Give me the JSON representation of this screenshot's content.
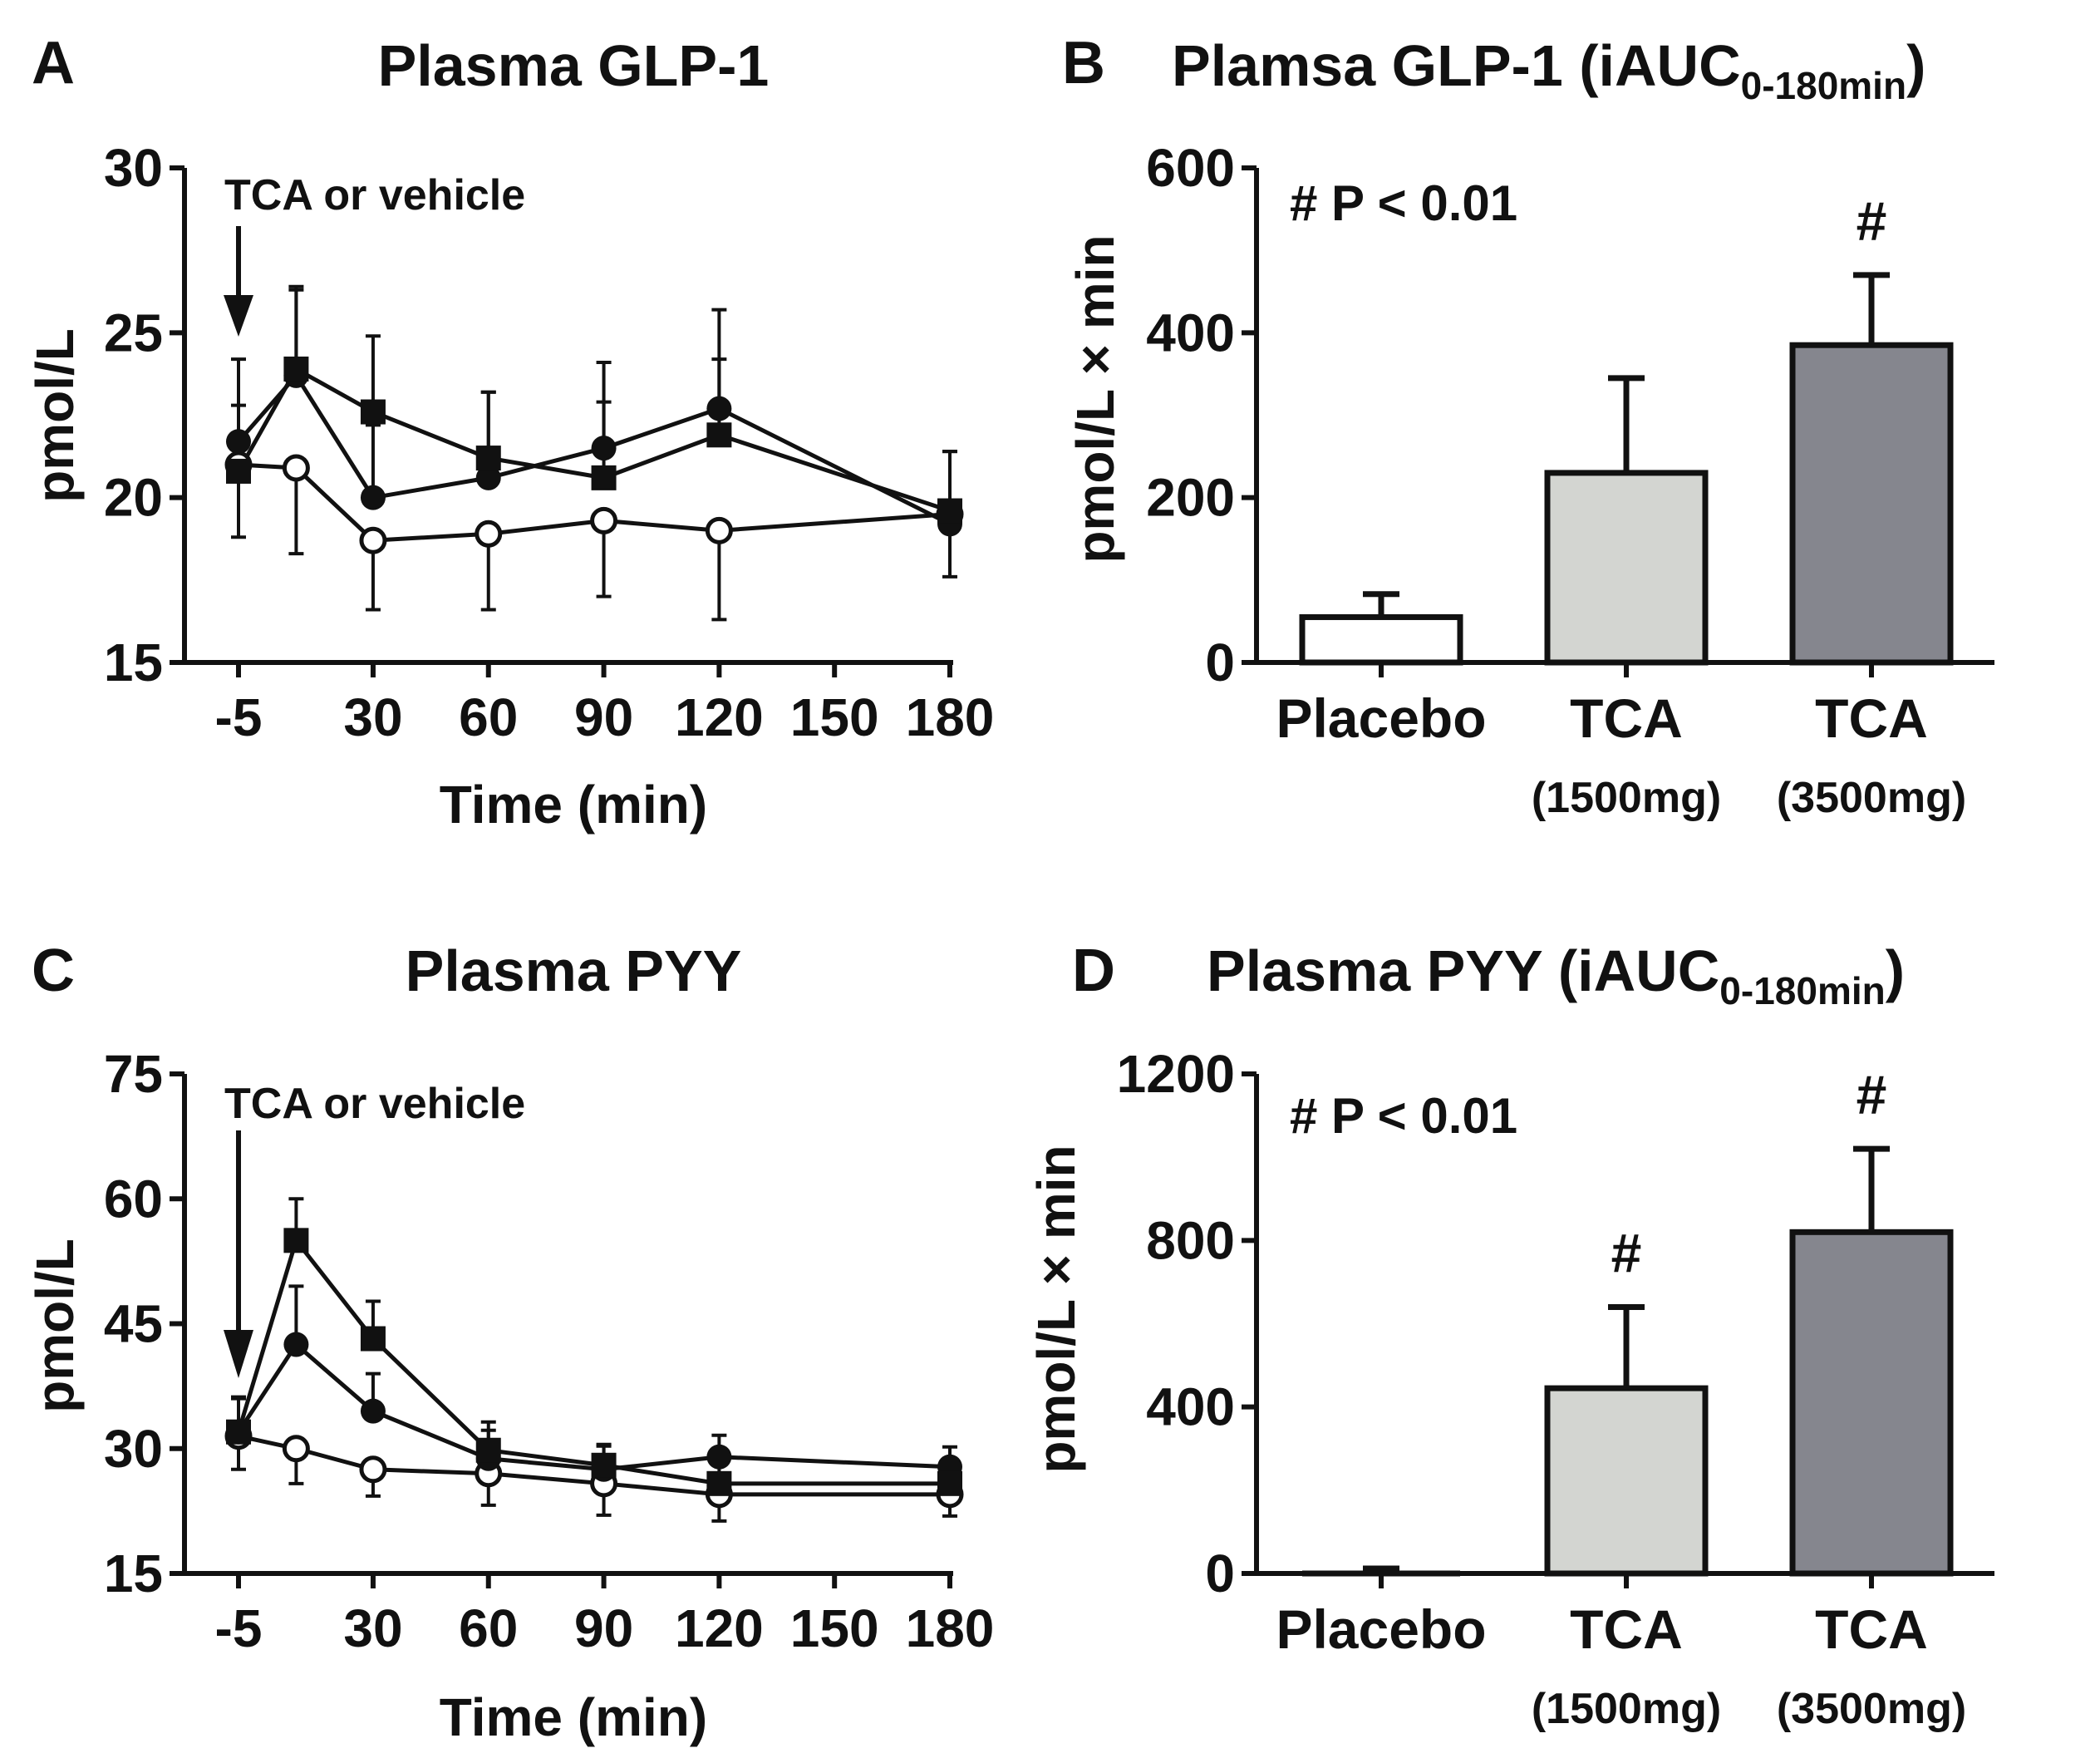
{
  "chart_data": [
    {
      "panel": "A",
      "type": "line",
      "title": "Plasma GLP-1",
      "xlabel": "Time (min)",
      "ylabel": "pmol/L",
      "ylim": [
        15,
        30
      ],
      "yticks": [
        "15",
        "20",
        "25",
        "30"
      ],
      "x_positions": [
        -5,
        10,
        30,
        60,
        90,
        120,
        180
      ],
      "xticks": [
        {
          "value": -5,
          "label": "-5"
        },
        {
          "value": 30,
          "label": "30"
        },
        {
          "value": 60,
          "label": "60"
        },
        {
          "value": 90,
          "label": "90"
        },
        {
          "value": 120,
          "label": "120"
        },
        {
          "value": 150,
          "label": "150"
        },
        {
          "value": 180,
          "label": "180"
        }
      ],
      "annotation": "TCA or vehicle",
      "series": [
        {
          "name": "Placebo",
          "marker": "open-circle",
          "x": [
            -5,
            10,
            30,
            60,
            90,
            120,
            180
          ],
          "values": [
            21.0,
            20.9,
            18.7,
            18.9,
            19.3,
            19.0,
            19.5
          ],
          "errors": [
            2.2,
            2.6,
            2.1,
            2.3,
            2.3,
            2.7,
            1.9
          ]
        },
        {
          "name": "TCA (1500mg)",
          "marker": "filled-circle",
          "x": [
            -5,
            10,
            30,
            60,
            90,
            120,
            180
          ],
          "values": [
            21.7,
            23.7,
            20.0,
            20.6,
            21.5,
            22.7,
            19.2
          ],
          "errors": [
            2.5,
            2.6,
            2.2,
            2.6,
            2.6,
            3.0,
            2.2
          ]
        },
        {
          "name": "TCA (3500mg)",
          "marker": "filled-square",
          "x": [
            -5,
            10,
            30,
            60,
            90,
            120,
            180
          ],
          "values": [
            20.8,
            23.9,
            22.6,
            21.2,
            20.6,
            21.9,
            19.6
          ],
          "errors": [
            2.0,
            2.5,
            2.3,
            2.0,
            2.3,
            2.3,
            1.8
          ]
        }
      ]
    },
    {
      "panel": "B",
      "type": "bar",
      "title": "Plamsa GLP-1 (iAUC",
      "title_sub": "0-180min",
      "title_close": ")",
      "ylabel": "pmol/L × min",
      "ylim": [
        0,
        600
      ],
      "yticks": [
        "0",
        "200",
        "400",
        "600"
      ],
      "categories": [
        {
          "label": "Placebo",
          "sublabel": ""
        },
        {
          "label": "TCA",
          "sublabel": "(1500mg)"
        },
        {
          "label": "TCA",
          "sublabel": "(3500mg)"
        }
      ],
      "values": [
        55,
        230,
        385
      ],
      "errors": [
        28,
        115,
        85
      ],
      "significance": [
        "",
        "",
        "#"
      ],
      "annotation": "# P < 0.01",
      "colors": [
        "#ffffff",
        "#d3d5d1",
        "#85868e"
      ]
    },
    {
      "panel": "C",
      "type": "line",
      "title": "Plasma PYY",
      "xlabel": "Time (min)",
      "ylabel": "pmol/L",
      "ylim": [
        15,
        75
      ],
      "yticks": [
        "15",
        "30",
        "45",
        "60",
        "75"
      ],
      "x_positions": [
        -5,
        10,
        30,
        60,
        90,
        120,
        180
      ],
      "xticks": [
        {
          "value": -5,
          "label": "-5"
        },
        {
          "value": 30,
          "label": "30"
        },
        {
          "value": 60,
          "label": "60"
        },
        {
          "value": 90,
          "label": "90"
        },
        {
          "value": 120,
          "label": "120"
        },
        {
          "value": 150,
          "label": "150"
        },
        {
          "value": 180,
          "label": "180"
        }
      ],
      "annotation": "TCA or vehicle",
      "series": [
        {
          "name": "Placebo",
          "marker": "open-circle",
          "x": [
            -5,
            10,
            30,
            60,
            90,
            120,
            180
          ],
          "values": [
            31.5,
            30.0,
            27.5,
            27.0,
            25.8,
            24.5,
            24.5
          ],
          "errors": [
            4.0,
            4.2,
            3.2,
            3.8,
            3.8,
            3.2,
            2.6
          ]
        },
        {
          "name": "TCA (1500mg)",
          "marker": "filled-circle",
          "x": [
            -5,
            10,
            30,
            60,
            90,
            120,
            180
          ],
          "values": [
            32.0,
            42.5,
            34.5,
            28.8,
            27.5,
            29.0,
            27.8
          ],
          "errors": [
            4.0,
            7.0,
            4.5,
            3.4,
            2.8,
            2.6,
            2.4
          ]
        },
        {
          "name": "TCA (3500mg)",
          "marker": "filled-square",
          "x": [
            -5,
            10,
            30,
            60,
            90,
            120,
            180
          ],
          "values": [
            32.0,
            55.0,
            43.2,
            29.8,
            28.0,
            25.8,
            25.8
          ],
          "errors": [
            4.2,
            5.0,
            4.5,
            3.4,
            2.5,
            2.5,
            2.4
          ]
        }
      ]
    },
    {
      "panel": "D",
      "type": "bar",
      "title": "Plasma PYY (iAUC",
      "title_sub": "0-180min",
      "title_close": ")",
      "ylabel": "pmol/L × min",
      "ylim": [
        0,
        1200
      ],
      "yticks": [
        "0",
        "400",
        "800",
        "1200"
      ],
      "categories": [
        {
          "label": "Placebo",
          "sublabel": ""
        },
        {
          "label": "TCA",
          "sublabel": "(1500mg)"
        },
        {
          "label": "TCA",
          "sublabel": "(3500mg)"
        }
      ],
      "values": [
        0,
        445,
        820
      ],
      "errors": [
        12,
        195,
        200
      ],
      "significance": [
        "",
        "#",
        "#"
      ],
      "annotation": "# P < 0.01",
      "colors": [
        "#ffffff",
        "#d3d5d1",
        "#85868e"
      ]
    }
  ]
}
